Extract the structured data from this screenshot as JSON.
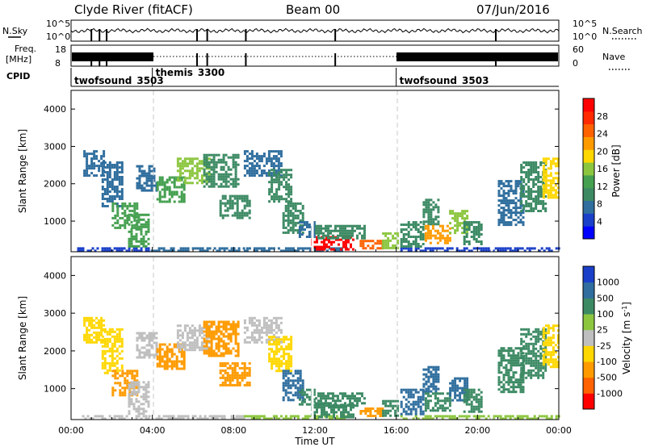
{
  "header": {
    "station": "Clyde River (fitACF)",
    "beam": "Beam 00",
    "date": "07/Jun/2016"
  },
  "colors": {
    "power": [
      "#0000ff",
      "#1a3fc8",
      "#2f6e9e",
      "#3c8a64",
      "#45a050",
      "#8cc63f",
      "#ffd700",
      "#ff9b00",
      "#ff6200",
      "#ff2a00",
      "#ff0000"
    ],
    "velocity": [
      "#ff0000",
      "#ff6200",
      "#ff9b00",
      "#ffd700",
      "#bfbfbf",
      "#8cc63f",
      "#3c8a64",
      "#2f6e9e",
      "#1a3fc8"
    ]
  },
  "chart_data": [
    {
      "type": "line",
      "panel": "noise",
      "left_label": "N.Sky",
      "right_label": "N.Search",
      "yticks_left": [
        "10^5",
        "10^0"
      ],
      "yticks_right": [
        "10^5",
        "10^0"
      ],
      "dips_hours": [
        1.0,
        1.4,
        1.75,
        6.2,
        6.7,
        8.6,
        13.0,
        20.9
      ]
    },
    {
      "type": "line",
      "panel": "frequency",
      "left_label": "Freq.",
      "left_units": "[MHz]",
      "right_label": "Nave",
      "yticks_left": [
        "18",
        "8"
      ],
      "yticks_right": [
        "60",
        "0"
      ],
      "dips_hours": [
        1.0,
        1.4,
        1.75,
        6.2,
        6.7,
        8.6,
        13.0,
        20.9
      ]
    },
    {
      "type": "table",
      "panel": "cpid",
      "label": "CPID",
      "segments": [
        {
          "start": 0,
          "end": 4,
          "name": "twofsound",
          "id": "3503"
        },
        {
          "start": 4,
          "end": 16,
          "name": "themis",
          "id": "3300"
        },
        {
          "start": 16,
          "end": 24,
          "name": "twofsound",
          "id": "3503"
        }
      ]
    },
    {
      "type": "heatmap",
      "panel": "power",
      "ylabel": "Slant Range [km]",
      "yticks": [
        1000,
        2000,
        3000,
        4000
      ],
      "ylim": [
        180,
        4500
      ],
      "xlim": [
        0,
        24
      ],
      "cbar_label": "Power [dB]",
      "cbar_ticks": [
        "4",
        "8",
        "12",
        "16",
        "20",
        "24",
        "28"
      ],
      "vmin": 0,
      "vmax": 32,
      "patches": [
        {
          "t0": 0.3,
          "t1": 3.8,
          "r0": 180,
          "r1": 300,
          "v": 5
        },
        {
          "t0": 3.8,
          "t1": 8.5,
          "r0": 180,
          "r1": 300,
          "v": 7
        },
        {
          "t0": 8.5,
          "t1": 13.6,
          "r0": 180,
          "r1": 300,
          "v": 6
        },
        {
          "t0": 16.2,
          "t1": 24,
          "r0": 180,
          "r1": 300,
          "v": 5
        },
        {
          "t0": 0.6,
          "t1": 1.6,
          "r0": 2200,
          "r1": 2900,
          "v": 8
        },
        {
          "t0": 1.5,
          "t1": 2.5,
          "r0": 1400,
          "r1": 2600,
          "v": 7
        },
        {
          "t0": 2.0,
          "t1": 3.3,
          "r0": 850,
          "r1": 1500,
          "v": 12
        },
        {
          "t0": 2.8,
          "t1": 3.8,
          "r0": 350,
          "r1": 1200,
          "v": 14
        },
        {
          "t0": 3.2,
          "t1": 4.2,
          "r0": 1800,
          "r1": 2500,
          "v": 8
        },
        {
          "t0": 4.2,
          "t1": 5.6,
          "r0": 1500,
          "r1": 2200,
          "v": 12
        },
        {
          "t0": 5.2,
          "t1": 6.8,
          "r0": 2000,
          "r1": 2700,
          "v": 16
        },
        {
          "t0": 6.5,
          "t1": 8.2,
          "r0": 1900,
          "r1": 2800,
          "v": 9
        },
        {
          "t0": 7.3,
          "t1": 8.8,
          "r0": 1100,
          "r1": 1700,
          "v": 11
        },
        {
          "t0": 8.5,
          "t1": 10.3,
          "r0": 2200,
          "r1": 2900,
          "v": 7
        },
        {
          "t0": 9.7,
          "t1": 10.8,
          "r0": 1500,
          "r1": 2400,
          "v": 9
        },
        {
          "t0": 10.4,
          "t1": 11.4,
          "r0": 700,
          "r1": 1500,
          "v": 10
        },
        {
          "t0": 11.2,
          "t1": 12.0,
          "r0": 600,
          "r1": 1000,
          "v": 7
        },
        {
          "t0": 11.8,
          "t1": 13.9,
          "r0": 250,
          "r1": 600,
          "v": 30
        },
        {
          "t0": 12.0,
          "t1": 14.5,
          "r0": 550,
          "r1": 900,
          "v": 9
        },
        {
          "t0": 14.2,
          "t1": 15.3,
          "r0": 250,
          "r1": 500,
          "v": 26
        },
        {
          "t0": 15.3,
          "t1": 16.1,
          "r0": 300,
          "r1": 700,
          "v": 17
        },
        {
          "t0": 16.2,
          "t1": 17.3,
          "r0": 350,
          "r1": 1000,
          "v": 9
        },
        {
          "t0": 17.3,
          "t1": 18.1,
          "r0": 900,
          "r1": 1600,
          "v": 10
        },
        {
          "t0": 17.4,
          "t1": 18.6,
          "r0": 400,
          "r1": 900,
          "v": 22
        },
        {
          "t0": 18.6,
          "t1": 19.5,
          "r0": 700,
          "r1": 1300,
          "v": 17
        },
        {
          "t0": 19.3,
          "t1": 20.2,
          "r0": 400,
          "r1": 1000,
          "v": 9
        },
        {
          "t0": 21.0,
          "t1": 22.3,
          "r0": 900,
          "r1": 2100,
          "v": 7
        },
        {
          "t0": 22.1,
          "t1": 23.4,
          "r0": 1300,
          "r1": 2600,
          "v": 10
        },
        {
          "t0": 23.2,
          "t1": 24.0,
          "r0": 1600,
          "r1": 2700,
          "v": 18
        }
      ]
    },
    {
      "type": "heatmap",
      "panel": "velocity",
      "ylabel": "Slant Range [km]",
      "yticks": [
        1000,
        2000,
        3000,
        4000
      ],
      "ylim": [
        180,
        4500
      ],
      "xlim": [
        0,
        24
      ],
      "xticks": [
        "00:00",
        "04:00",
        "08:00",
        "12:00",
        "16:00",
        "20:00",
        "00:00"
      ],
      "xlabel": "Time UT",
      "cbar_label": "Velocity [m s",
      "cbar_label_sup": "-1",
      "cbar_label_end": "]",
      "cbar_ticks": [
        "-1000",
        "-500",
        "-100",
        "-25",
        "25",
        "100",
        "500",
        "1000"
      ],
      "patches": [
        {
          "t0": 0.3,
          "t1": 3.8,
          "r0": 180,
          "r1": 300,
          "v": 0
        },
        {
          "t0": 3.8,
          "t1": 8.5,
          "r0": 180,
          "r1": 300,
          "v": 0
        },
        {
          "t0": 8.5,
          "t1": 13.6,
          "r0": 180,
          "r1": 300,
          "v": 60
        },
        {
          "t0": 16.2,
          "t1": 24,
          "r0": 180,
          "r1": 300,
          "v": 60
        },
        {
          "t0": 0.6,
          "t1": 1.6,
          "r0": 2200,
          "r1": 2900,
          "v": -60
        },
        {
          "t0": 1.5,
          "t1": 2.5,
          "r0": 1400,
          "r1": 2600,
          "v": -30
        },
        {
          "t0": 2.0,
          "t1": 3.3,
          "r0": 850,
          "r1": 1500,
          "v": -300
        },
        {
          "t0": 2.8,
          "t1": 3.8,
          "r0": 350,
          "r1": 1200,
          "v": 0
        },
        {
          "t0": 3.2,
          "t1": 4.2,
          "r0": 1800,
          "r1": 2500,
          "v": 0
        },
        {
          "t0": 4.2,
          "t1": 5.6,
          "r0": 1500,
          "r1": 2200,
          "v": -300
        },
        {
          "t0": 5.2,
          "t1": 6.8,
          "r0": 2000,
          "r1": 2700,
          "v": 0
        },
        {
          "t0": 6.5,
          "t1": 8.2,
          "r0": 1900,
          "r1": 2800,
          "v": -150
        },
        {
          "t0": 7.3,
          "t1": 8.8,
          "r0": 1100,
          "r1": 1700,
          "v": -300
        },
        {
          "t0": 8.5,
          "t1": 10.3,
          "r0": 2200,
          "r1": 2900,
          "v": 0
        },
        {
          "t0": 9.7,
          "t1": 10.8,
          "r0": 1500,
          "r1": 2400,
          "v": -60
        },
        {
          "t0": 10.4,
          "t1": 11.4,
          "r0": 700,
          "r1": 1500,
          "v": 700
        },
        {
          "t0": 11.2,
          "t1": 12.0,
          "r0": 600,
          "r1": 1000,
          "v": 150
        },
        {
          "t0": 11.8,
          "t1": 13.9,
          "r0": 250,
          "r1": 600,
          "v": 300
        },
        {
          "t0": 12.0,
          "t1": 14.5,
          "r0": 550,
          "r1": 900,
          "v": 300
        },
        {
          "t0": 14.2,
          "t1": 15.3,
          "r0": 250,
          "r1": 500,
          "v": -150
        },
        {
          "t0": 15.3,
          "t1": 16.1,
          "r0": 300,
          "r1": 700,
          "v": 300
        },
        {
          "t0": 16.2,
          "t1": 17.3,
          "r0": 350,
          "r1": 1000,
          "v": 700
        },
        {
          "t0": 17.3,
          "t1": 18.1,
          "r0": 900,
          "r1": 1600,
          "v": 700
        },
        {
          "t0": 17.4,
          "t1": 18.6,
          "r0": 400,
          "r1": 900,
          "v": 300
        },
        {
          "t0": 18.6,
          "t1": 19.5,
          "r0": 700,
          "r1": 1300,
          "v": 700
        },
        {
          "t0": 19.3,
          "t1": 20.2,
          "r0": 400,
          "r1": 1000,
          "v": 300
        },
        {
          "t0": 21.0,
          "t1": 22.3,
          "r0": 900,
          "r1": 2100,
          "v": 300
        },
        {
          "t0": 22.1,
          "t1": 23.4,
          "r0": 1300,
          "r1": 2600,
          "v": 150
        },
        {
          "t0": 23.2,
          "t1": 24.0,
          "r0": 1600,
          "r1": 2700,
          "v": -60
        }
      ]
    }
  ]
}
